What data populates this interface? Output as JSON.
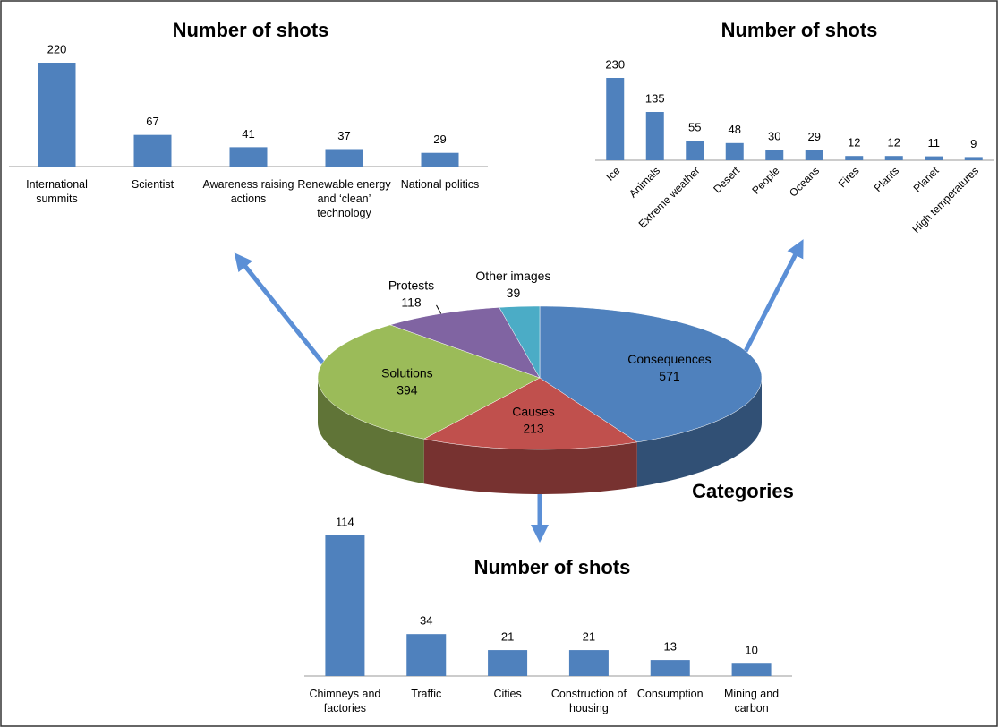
{
  "chart_data": [
    {
      "type": "bar",
      "title": "Number of shots",
      "color": "#4f81bd",
      "categories": [
        "International summits",
        "Scientist",
        "Awareness raising actions",
        "Renewable energy and ‘clean’ technology",
        "National politics"
      ],
      "values": [
        220,
        67,
        41,
        37,
        29
      ]
    },
    {
      "type": "bar",
      "title": "Number of shots",
      "color": "#4f81bd",
      "categories": [
        "Ice",
        "Animals",
        "Extreme weather",
        "Desert",
        "People",
        "Oceans",
        "Fires",
        "Plants",
        "Planet",
        "High temperatures"
      ],
      "values": [
        230,
        135,
        55,
        48,
        30,
        29,
        12,
        12,
        11,
        9
      ]
    },
    {
      "type": "bar",
      "title": "Number of shots",
      "color": "#4f81bd",
      "categories": [
        "Chimneys and factories",
        "Traffic",
        "Cities",
        "Construction of housing",
        "Consumption",
        "Mining and carbon"
      ],
      "values": [
        114,
        34,
        21,
        21,
        13,
        10
      ]
    },
    {
      "type": "pie",
      "title": "Categories",
      "categories": [
        "Consequences",
        "Causes",
        "Solutions",
        "Protests",
        "Other images"
      ],
      "values": [
        571,
        213,
        394,
        118,
        39
      ],
      "colors": [
        "#4f81bd",
        "#c0504d",
        "#9bbb59",
        "#8064a2",
        "#4bacc6"
      ]
    }
  ]
}
